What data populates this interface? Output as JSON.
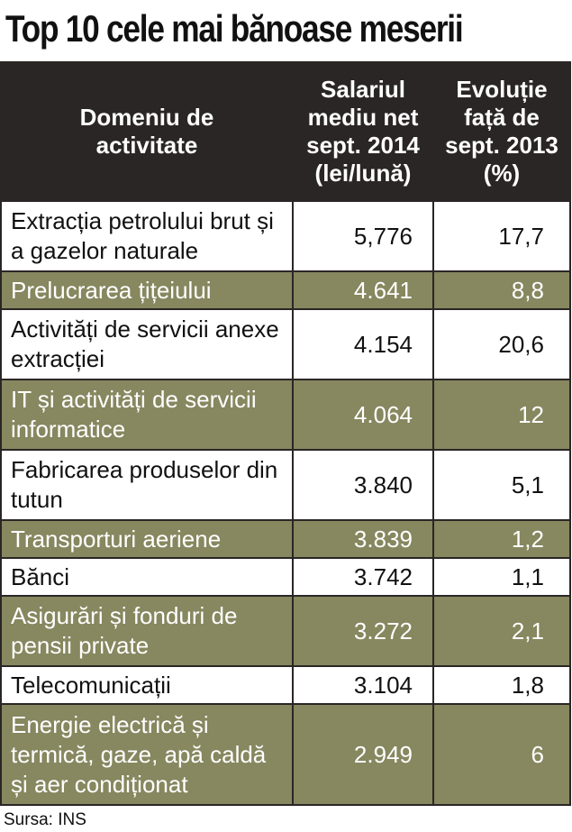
{
  "title": "Top 10 cele mai bănoase meserii",
  "colors": {
    "header_bg": "#2a2625",
    "highlight_row": "#878760",
    "border": "#2a2625"
  },
  "chart_data": {
    "type": "table",
    "title": "Top 10 cele mai bănoase meserii",
    "columns": [
      "Domeniu de activitate",
      "Salariul mediu net sept. 2014 (lei/lună)",
      "Evoluție față de sept. 2013 (%)"
    ],
    "rows": [
      {
        "domain": "Extracția petrolului brut și a gazelor naturale",
        "salary": "5,776",
        "evolution": "17,7"
      },
      {
        "domain": "Prelucrarea țițeiului",
        "salary": "4.641",
        "evolution": "8,8"
      },
      {
        "domain": "Activități de servicii anexe extracției",
        "salary": "4.154",
        "evolution": "20,6"
      },
      {
        "domain": "IT și activități de servicii informatice",
        "salary": "4.064",
        "evolution": "12"
      },
      {
        "domain": "Fabricarea produselor din tutun",
        "salary": "3.840",
        "evolution": "5,1"
      },
      {
        "domain": "Transporturi aeriene",
        "salary": "3.839",
        "evolution": "1,2"
      },
      {
        "domain": "Bănci",
        "salary": "3.742",
        "evolution": "1,1"
      },
      {
        "domain": "Asigurări și fonduri de pensii private",
        "salary": "3.272",
        "evolution": "2,1"
      },
      {
        "domain": "Telecomunicații",
        "salary": "3.104",
        "evolution": "1,8"
      },
      {
        "domain": "Energie electrică și termică, gaze, apă caldă și aer condiționat",
        "salary": "2.949",
        "evolution": "6"
      }
    ]
  },
  "source": "Sursa: INS"
}
